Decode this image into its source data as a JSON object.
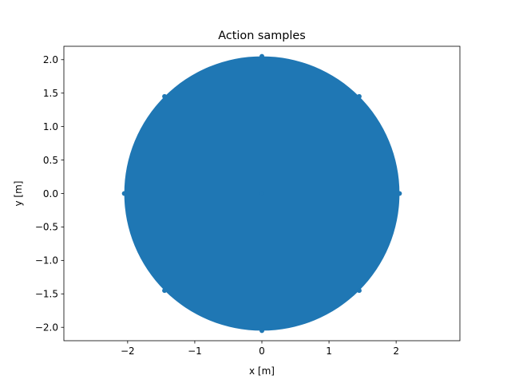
{
  "chart_data": {
    "type": "scatter",
    "title": "Action samples",
    "xlabel": "x [m]",
    "ylabel": "y [m]",
    "xlim": [
      -2.95,
      2.95
    ],
    "ylim": [
      -2.2,
      2.2
    ],
    "xticks": [
      -2,
      -1,
      0,
      1,
      2
    ],
    "yticks": [
      -2.0,
      -1.5,
      -1.0,
      -0.5,
      0.0,
      0.5,
      1.0,
      1.5,
      2.0
    ],
    "xtick_labels": [
      "−2",
      "−1",
      "0",
      "1",
      "2"
    ],
    "ytick_labels": [
      "−2.0",
      "−1.5",
      "−1.0",
      "−0.5",
      "0.0",
      "0.5",
      "1.0",
      "1.5",
      "2.0"
    ],
    "grid": false,
    "series": [
      {
        "color": "#1f77b4",
        "marker": "circle",
        "region": {
          "shape": "disk",
          "center": [
            0,
            0
          ],
          "radius": 2.05
        },
        "points": [
          [
            0,
            0
          ],
          [
            2.05,
            0
          ],
          [
            -2.05,
            0
          ],
          [
            0,
            2.05
          ],
          [
            0,
            -2.05
          ],
          [
            1.45,
            1.45
          ],
          [
            -1.45,
            1.45
          ],
          [
            1.45,
            -1.45
          ],
          [
            -1.45,
            -1.45
          ]
        ]
      }
    ]
  }
}
